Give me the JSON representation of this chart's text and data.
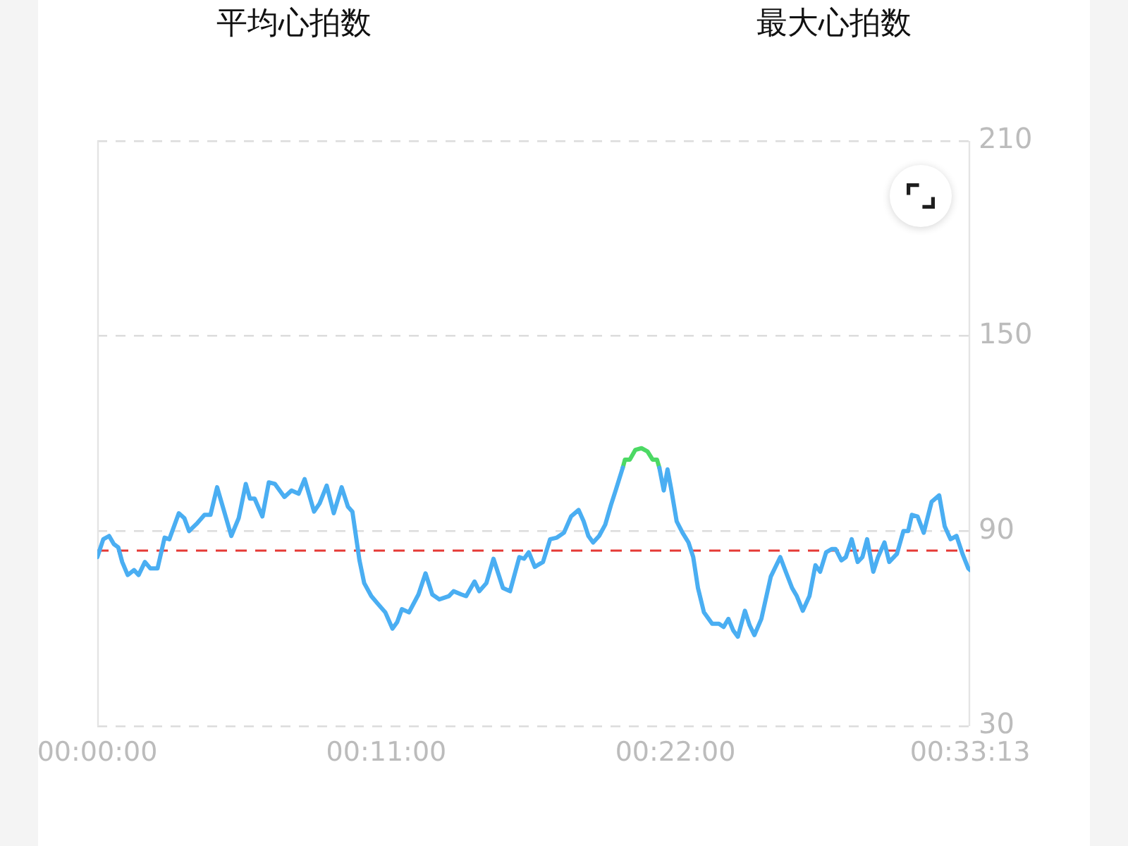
{
  "chart_data": {
    "type": "line",
    "annotations": [
      "平均心拍数",
      "最大心拍数"
    ],
    "x": [
      0,
      0.0038,
      0.0075,
      0.0105,
      0.0133,
      0.0158,
      0.0193,
      0.0233,
      0.0262,
      0.0302,
      0.0337,
      0.0382,
      0.0427,
      0.0457,
      0.0517,
      0.0552,
      0.0582,
      0.0635,
      0.068,
      0.0718,
      0.076,
      0.0805,
      0.085,
      0.0897,
      0.0942,
      0.0968,
      0.0998,
      0.1047,
      0.1088,
      0.1127,
      0.1187,
      0.1232,
      0.1277,
      0.1315,
      0.1375,
      0.141,
      0.1455,
      0.15,
      0.155,
      0.159,
      0.1618,
      0.1663,
      0.1693,
      0.1738,
      0.1782,
      0.1827,
      0.1872,
      0.1902,
      0.1932,
      0.1977,
      0.2037,
      0.2082,
      0.2125,
      0.217,
      0.223,
      0.226,
      0.231,
      0.234,
      0.2393,
      0.2423,
      0.2468,
      0.2513,
      0.2543,
      0.2573,
      0.2618,
      0.2677,
      0.2707,
      0.2737,
      0.2775,
      0.2827,
      0.2872,
      0.2915,
      0.296,
      0.3005,
      0.3053,
      0.3085,
      0.3115,
      0.3145,
      0.3183,
      0.3222,
      0.3258,
      0.3288,
      0.3333,
      0.3347,
      0.3378,
      0.3413,
      0.3452,
      0.349,
      0.3522,
      0.355,
      0.3565,
      0.3593,
      0.3617,
      0.364,
      0.3675,
      0.3712,
      0.375,
      0.378,
      0.381,
      0.3848,
      0.39,
      0.3943,
      0.3973,
      0.4003,
      0.4033,
      0.4063,
      0.4108,
      0.4138,
      0.4168,
      0.4212,
      0.4272,
      0.4332,
      0.4367,
      0.4407,
      0.4437,
      0.4475,
      0.4517,
      0.4555,
      0.4585,
      0.4623,
      0.466,
      0.4683,
      0.472,
      0.4748,
      0.4785,
      0.4823,
      0.4853,
      0.4883,
      0.4922,
      0.4952,
      0.4993,
      0.5023,
      0.5072,
      0.5113,
      0.5143,
      0.5167,
      0.5203,
      0.5242,
      0.5292,
      0.534,
      0.5375,
      0.5412,
      0.545,
      0.5488,
      0.5525,
      0.5536
    ],
    "series": [
      {
        "color": "#4aaef2",
        "values": [
          82,
          87.5,
          88.5,
          86,
          85,
          80.5,
          76.5,
          78,
          76.5,
          80.5,
          78.5,
          78.5,
          88,
          87.5,
          95.5,
          94,
          90,
          92.5,
          95,
          95,
          103.5,
          96,
          88.5,
          94,
          104.5,
          100,
          100,
          94.5,
          105,
          104.5,
          100.5,
          102.5,
          101.5,
          106,
          96,
          98.5,
          104,
          95.5,
          103.5,
          97.5,
          96,
          81,
          74,
          70,
          67.5,
          65,
          60,
          62,
          66,
          65,
          70.5,
          77,
          70.5,
          69,
          70,
          71.5,
          70.5,
          70,
          74.5,
          71.5,
          74,
          81.5,
          77,
          72.5,
          71.5,
          82,
          81.5,
          83.5,
          79,
          80.5,
          87.5,
          88,
          89.5,
          94.5,
          96.5,
          93,
          88.5,
          86.5,
          88.5,
          92,
          98,
          102.5,
          109.5,
          null,
          null,
          null,
          null,
          null,
          null,
          null,
          109.5,
          102.5,
          109,
          103,
          93,
          89.5,
          86.5,
          82,
          72.5,
          65,
          61.5,
          61.5,
          60.5,
          63,
          59.5,
          57.5,
          65.5,
          61,
          58,
          63,
          76,
          82,
          77.5,
          72.5,
          70,
          65.5,
          70,
          79.5,
          77.5,
          83.5,
          84.5,
          84.5,
          81,
          82,
          87.5,
          80.5,
          82,
          87.5,
          77.5,
          82,
          86.5,
          80.5,
          83,
          90,
          90,
          95,
          94.5,
          89.5,
          99,
          101,
          91.5,
          87.5,
          88.5,
          83,
          78.5,
          78
        ]
      },
      {
        "color": "#4cd964",
        "x": [
          0.3333,
          0.3347,
          0.3378,
          0.3413,
          0.3452,
          0.349,
          0.3522,
          0.355,
          0.3565
        ],
        "values": [
          109.5,
          112,
          112,
          115,
          115.5,
          114.5,
          112,
          112,
          109.5
        ]
      }
    ],
    "xlim": [
      0,
      0.5536
    ],
    "xticks": [
      {
        "value": 0,
        "label": "00:00:00"
      },
      {
        "value": 0.1833,
        "label": "00:11:00"
      },
      {
        "value": 0.3667,
        "label": "00:22:00"
      },
      {
        "value": 0.5536,
        "label": "00:33:13"
      }
    ],
    "ylim": [
      30,
      210
    ],
    "yticks": [
      30,
      90,
      150,
      210
    ],
    "grid": "y",
    "marker": "none",
    "ref_lines": [
      {
        "axis": "y",
        "value": 84,
        "color": "#e53935",
        "line_style": "dashed"
      }
    ]
  }
}
